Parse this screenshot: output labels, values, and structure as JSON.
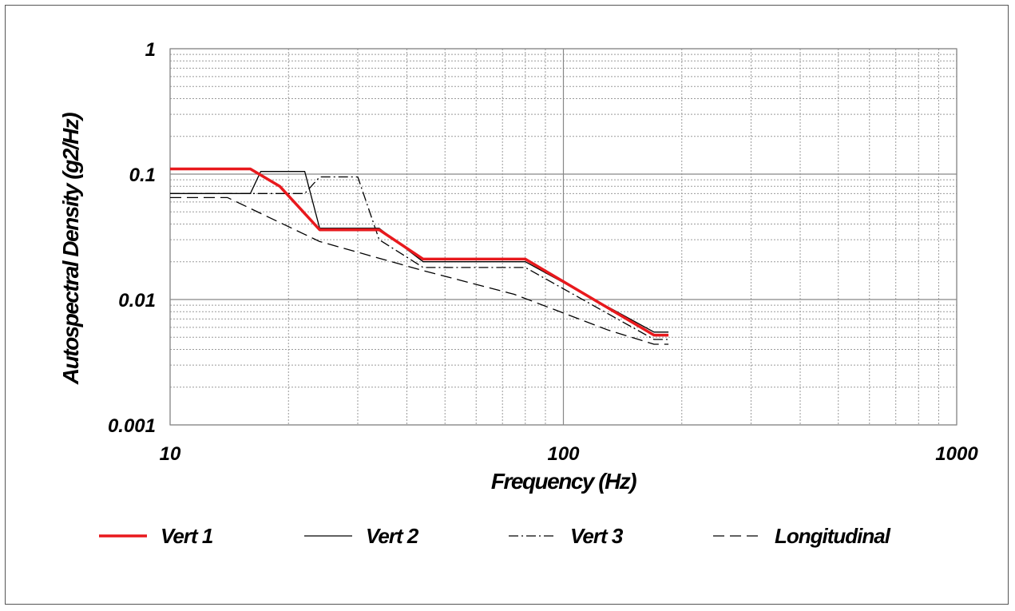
{
  "chart_data": {
    "type": "line",
    "xlabel": "Frequency (Hz)",
    "ylabel": "Autospectral Density (g2/Hz)",
    "x_scale": "log",
    "y_scale": "log",
    "xlim": [
      10,
      1000
    ],
    "ylim": [
      0.001,
      1
    ],
    "x_ticks": [
      {
        "value": 10,
        "label": "10"
      },
      {
        "value": 100,
        "label": "100"
      },
      {
        "value": 1000,
        "label": "1000"
      }
    ],
    "y_ticks": [
      {
        "value": 1,
        "label": "1"
      },
      {
        "value": 0.1,
        "label": "0.1"
      },
      {
        "value": 0.01,
        "label": "0.01"
      },
      {
        "value": 0.001,
        "label": "0.001"
      }
    ],
    "grid": true,
    "legend_position": "bottom",
    "series": [
      {
        "name": "Vert 1",
        "color": "#e8191d",
        "style": "solid-thick",
        "points": [
          [
            10,
            0.11
          ],
          [
            16,
            0.11
          ],
          [
            19,
            0.08
          ],
          [
            24,
            0.036
          ],
          [
            34,
            0.036
          ],
          [
            44,
            0.021
          ],
          [
            80,
            0.021
          ],
          [
            170,
            0.0052
          ],
          [
            185,
            0.0052
          ]
        ]
      },
      {
        "name": "Vert 2",
        "color": "#000000",
        "style": "solid",
        "points": [
          [
            10,
            0.07
          ],
          [
            16,
            0.07
          ],
          [
            17,
            0.105
          ],
          [
            22,
            0.105
          ],
          [
            24,
            0.037
          ],
          [
            34,
            0.037
          ],
          [
            44,
            0.02
          ],
          [
            80,
            0.02
          ],
          [
            170,
            0.0055
          ],
          [
            185,
            0.0055
          ]
        ]
      },
      {
        "name": "Vert 3",
        "color": "#000000",
        "style": "dash-dot",
        "points": [
          [
            10,
            0.07
          ],
          [
            22,
            0.07
          ],
          [
            24,
            0.095
          ],
          [
            30,
            0.095
          ],
          [
            34,
            0.03
          ],
          [
            44,
            0.018
          ],
          [
            80,
            0.018
          ],
          [
            170,
            0.0048
          ],
          [
            185,
            0.0048
          ]
        ]
      },
      {
        "name": "Longitudinal",
        "color": "#000000",
        "style": "dashed",
        "points": [
          [
            10,
            0.065
          ],
          [
            14,
            0.065
          ],
          [
            24,
            0.029
          ],
          [
            44,
            0.017
          ],
          [
            75,
            0.011
          ],
          [
            130,
            0.0057
          ],
          [
            170,
            0.0044
          ],
          [
            185,
            0.0044
          ]
        ]
      }
    ]
  }
}
